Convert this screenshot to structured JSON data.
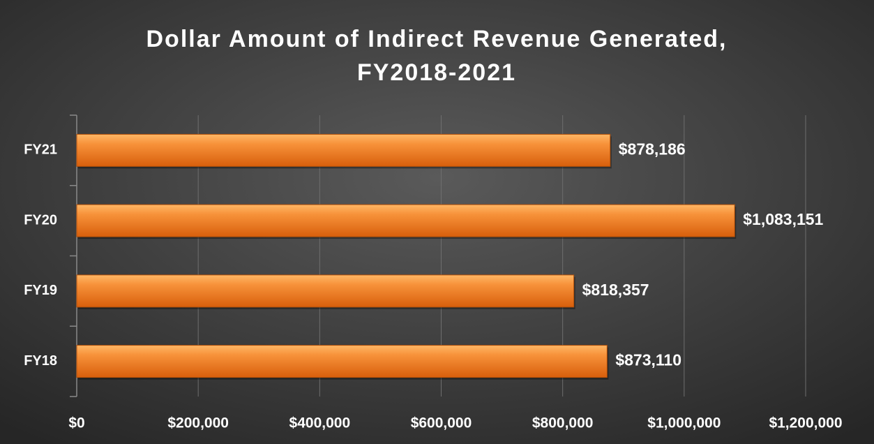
{
  "chart_data": {
    "type": "bar",
    "orientation": "horizontal",
    "title": [
      "Dollar Amount of Indirect Revenue Generated,",
      "FY2018-2021"
    ],
    "categories": [
      "FY18",
      "FY19",
      "FY20",
      "FY21"
    ],
    "values": [
      873110,
      818357,
      1083151,
      878186
    ],
    "value_labels": [
      "$873,110",
      "$818,357",
      "$1,083,151",
      "$878,186"
    ],
    "color": "#f28a2e",
    "xlim": [
      0,
      1200000
    ],
    "xticks": [
      {
        "value": 0,
        "label": "$0"
      },
      {
        "value": 200000,
        "label": "$200,000"
      },
      {
        "value": 400000,
        "label": "$400,000"
      },
      {
        "value": 600000,
        "label": "$600,000"
      },
      {
        "value": 800000,
        "label": "$800,000"
      },
      {
        "value": 1000000,
        "label": "$1,000,000"
      },
      {
        "value": 1200000,
        "label": "$1,200,000"
      }
    ],
    "grid": true
  }
}
